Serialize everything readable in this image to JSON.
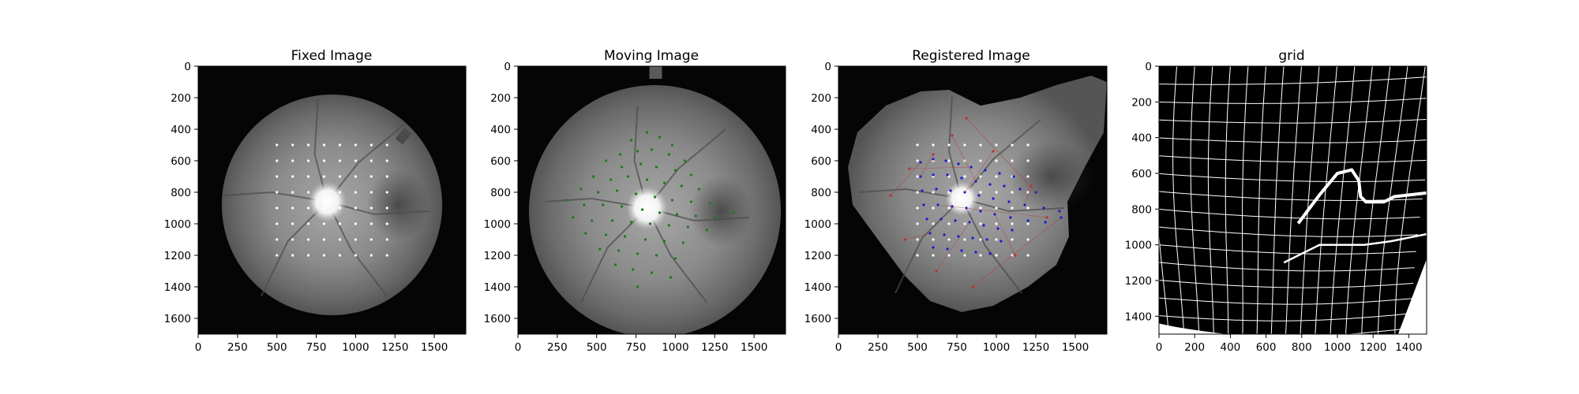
{
  "chart_data": [
    {
      "type": "image",
      "title": "Fixed Image",
      "xlim": [
        0,
        1700
      ],
      "ylim": [
        1700,
        0
      ],
      "xticks": [
        0,
        250,
        500,
        750,
        1000,
        1250,
        1500
      ],
      "yticks": [
        0,
        200,
        400,
        600,
        800,
        1000,
        1200,
        1400,
        1600
      ],
      "image": {
        "fundus_center": [
          850,
          880
        ],
        "fundus_radius": 700,
        "disc_center": [
          820,
          860
        ],
        "disc_radius": 110
      },
      "series": [
        {
          "grid_x": [
            500,
            600,
            700,
            800,
            900,
            1000,
            1100,
            1200
          ],
          "grid_y": [
            500,
            600,
            700,
            800,
            900,
            1000,
            1100,
            1200
          ],
          "color": "#ffffff"
        }
      ]
    },
    {
      "type": "image",
      "title": "Moving Image",
      "xlim": [
        0,
        1700
      ],
      "ylim": [
        1700,
        0
      ],
      "xticks": [
        0,
        250,
        500,
        750,
        1000,
        1250,
        1500
      ],
      "yticks": [
        0,
        200,
        400,
        600,
        800,
        1000,
        1200,
        1400,
        1600
      ],
      "image": {
        "fundus_center": [
          870,
          920
        ],
        "fundus_radius": 800,
        "disc_center": [
          820,
          900
        ],
        "disc_radius": 120
      },
      "series": [
        {
          "color": "#1a7a1a",
          "points": [
            [
              720,
              470
            ],
            [
              820,
              420
            ],
            [
              900,
              450
            ],
            [
              980,
              500
            ],
            [
              650,
              560
            ],
            [
              760,
              540
            ],
            [
              850,
              530
            ],
            [
              960,
              560
            ],
            [
              1060,
              600
            ],
            [
              560,
              600
            ],
            [
              660,
              640
            ],
            [
              780,
              620
            ],
            [
              880,
              640
            ],
            [
              1000,
              660
            ],
            [
              1100,
              690
            ],
            [
              480,
              700
            ],
            [
              590,
              720
            ],
            [
              700,
              700
            ],
            [
              820,
              720
            ],
            [
              930,
              740
            ],
            [
              1040,
              760
            ],
            [
              1150,
              780
            ],
            [
              400,
              780
            ],
            [
              510,
              800
            ],
            [
              630,
              790
            ],
            [
              750,
              810
            ],
            [
              870,
              830
            ],
            [
              980,
              850
            ],
            [
              1100,
              860
            ],
            [
              1220,
              870
            ],
            [
              310,
              850
            ],
            [
              420,
              880
            ],
            [
              540,
              880
            ],
            [
              660,
              890
            ],
            [
              790,
              910
            ],
            [
              900,
              930
            ],
            [
              1010,
              940
            ],
            [
              1130,
              950
            ],
            [
              1250,
              960
            ],
            [
              1370,
              930
            ],
            [
              350,
              960
            ],
            [
              470,
              980
            ],
            [
              600,
              980
            ],
            [
              720,
              990
            ],
            [
              840,
              1000
            ],
            [
              960,
              1010
            ],
            [
              1080,
              1020
            ],
            [
              1200,
              1040
            ],
            [
              430,
              1060
            ],
            [
              560,
              1070
            ],
            [
              680,
              1080
            ],
            [
              810,
              1100
            ],
            [
              930,
              1110
            ],
            [
              1050,
              1120
            ],
            [
              520,
              1160
            ],
            [
              640,
              1170
            ],
            [
              760,
              1190
            ],
            [
              880,
              1200
            ],
            [
              1000,
              1220
            ],
            [
              620,
              1260
            ],
            [
              730,
              1290
            ],
            [
              850,
              1310
            ],
            [
              970,
              1340
            ],
            [
              760,
              1400
            ]
          ]
        }
      ]
    },
    {
      "type": "image",
      "title": "Registered Image",
      "xlim": [
        0,
        1700
      ],
      "ylim": [
        1700,
        0
      ],
      "xticks": [
        0,
        250,
        500,
        750,
        1000,
        1250,
        1500
      ],
      "yticks": [
        0,
        200,
        400,
        600,
        800,
        1000,
        1200,
        1400,
        1600
      ],
      "image": {
        "disc_center": [
          780,
          840
        ],
        "disc_radius": 95
      },
      "series": [
        {
          "grid_x": [
            500,
            600,
            700,
            800,
            900,
            1000,
            1100,
            1200
          ],
          "grid_y": [
            500,
            600,
            700,
            800,
            900,
            1000,
            1100,
            1200
          ],
          "color": "#ffffff"
        },
        {
          "color": "#1a1ad0",
          "points": [
            [
              520,
              610
            ],
            [
              600,
              590
            ],
            [
              680,
              600
            ],
            [
              760,
              620
            ],
            [
              840,
              640
            ],
            [
              930,
              660
            ],
            [
              1020,
              680
            ],
            [
              1110,
              700
            ],
            [
              520,
              700
            ],
            [
              600,
              690
            ],
            [
              690,
              690
            ],
            [
              780,
              710
            ],
            [
              870,
              730
            ],
            [
              960,
              750
            ],
            [
              1050,
              760
            ],
            [
              1150,
              780
            ],
            [
              1250,
              800
            ],
            [
              530,
              790
            ],
            [
              620,
              780
            ],
            [
              710,
              790
            ],
            [
              800,
              800
            ],
            [
              890,
              820
            ],
            [
              980,
              840
            ],
            [
              1080,
              860
            ],
            [
              1180,
              880
            ],
            [
              1300,
              900
            ],
            [
              1400,
              920
            ],
            [
              540,
              880
            ],
            [
              630,
              880
            ],
            [
              720,
              890
            ],
            [
              810,
              900
            ],
            [
              900,
              920
            ],
            [
              990,
              940
            ],
            [
              1090,
              960
            ],
            [
              1200,
              980
            ],
            [
              1310,
              990
            ],
            [
              1410,
              960
            ],
            [
              560,
              970
            ],
            [
              650,
              970
            ],
            [
              740,
              980
            ],
            [
              830,
              990
            ],
            [
              920,
              1010
            ],
            [
              1010,
              1030
            ],
            [
              1100,
              1040
            ],
            [
              580,
              1060
            ],
            [
              670,
              1070
            ],
            [
              760,
              1080
            ],
            [
              850,
              1090
            ],
            [
              940,
              1100
            ],
            [
              1030,
              1110
            ],
            [
              600,
              1150
            ],
            [
              690,
              1160
            ],
            [
              780,
              1170
            ],
            [
              870,
              1180
            ],
            [
              960,
              1190
            ]
          ]
        },
        {
          "color": "#c03030",
          "points": [
            [
              330,
              820
            ],
            [
              450,
              650
            ],
            [
              600,
              560
            ],
            [
              720,
              440
            ],
            [
              810,
              330
            ],
            [
              980,
              540
            ],
            [
              1220,
              760
            ],
            [
              1320,
              960
            ],
            [
              1120,
              1200
            ],
            [
              850,
              1400
            ],
            [
              620,
              1300
            ],
            [
              420,
              1100
            ]
          ]
        }
      ]
    },
    {
      "type": "grid",
      "title": "grid",
      "xlim": [
        0,
        1500
      ],
      "ylim": [
        1500,
        0
      ],
      "xticks": [
        0,
        200,
        400,
        600,
        800,
        1000,
        1200,
        1400
      ],
      "yticks": [
        0,
        200,
        400,
        600,
        800,
        1000,
        1200,
        1400
      ],
      "grid": {
        "spacing": 100,
        "color": "#ffffff",
        "background": "#000000"
      }
    }
  ]
}
